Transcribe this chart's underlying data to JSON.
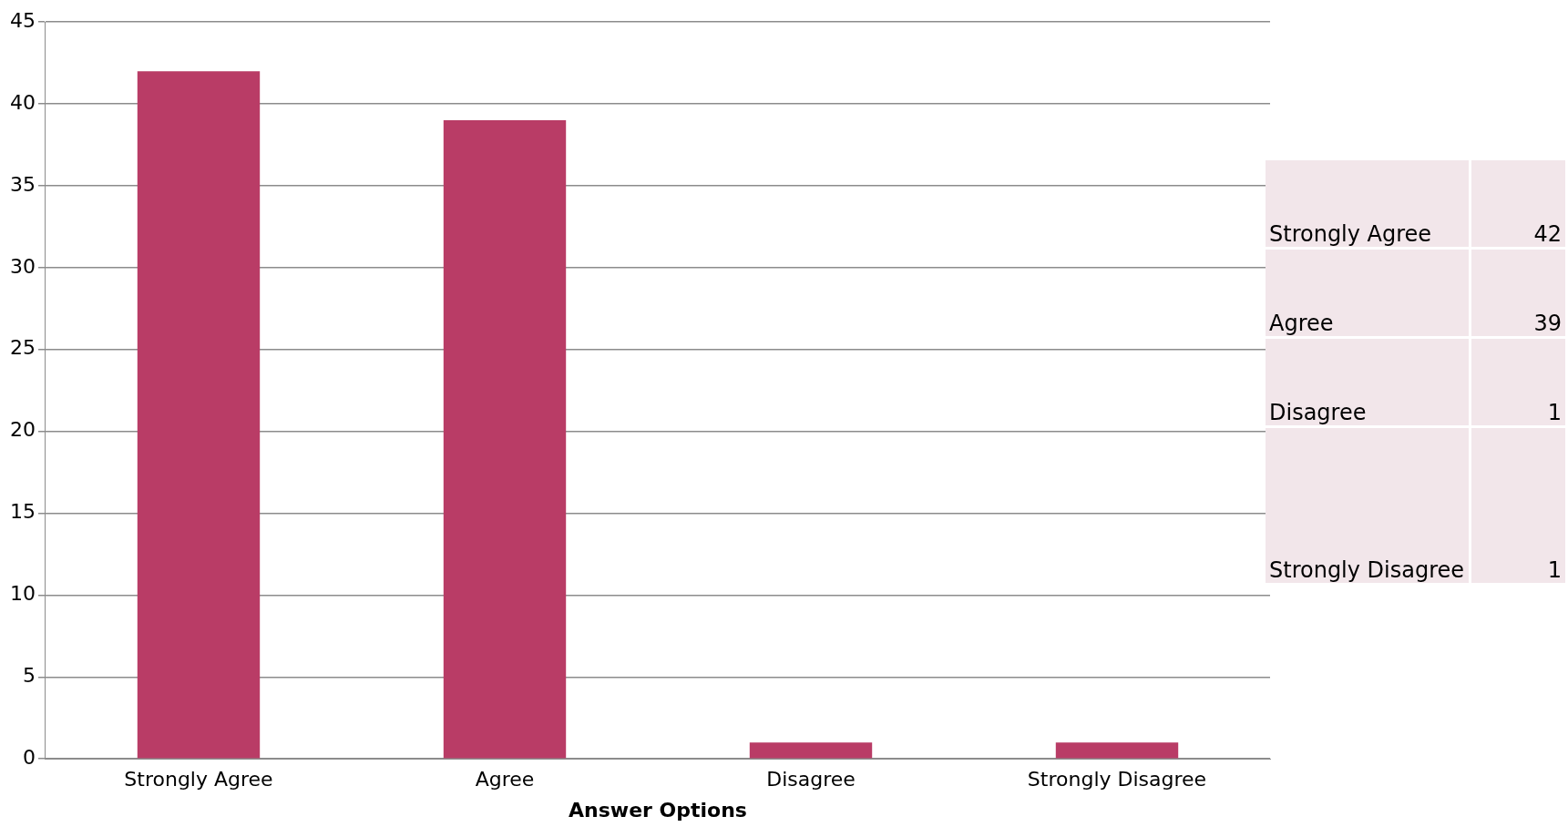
{
  "chart_data": [
    {
      "type": "bar",
      "xlabel": "Answer Options",
      "categories": [
        "Strongly Agree",
        "Agree",
        "Disagree",
        "Strongly Disagree"
      ],
      "values": [
        42,
        39,
        1,
        1
      ],
      "color": "#b93c66",
      "ylim": [
        0,
        45
      ],
      "yticks": [
        0,
        5,
        10,
        15,
        20,
        25,
        30,
        35,
        40,
        45
      ],
      "grid": "y",
      "legend": false
    },
    {
      "type": "other",
      "categories": [
        "Strongly Agree",
        "Agree",
        "Disagree",
        "Strongly Disagree"
      ],
      "values": [
        42,
        39,
        1,
        1
      ],
      "data_labels": true
    }
  ]
}
